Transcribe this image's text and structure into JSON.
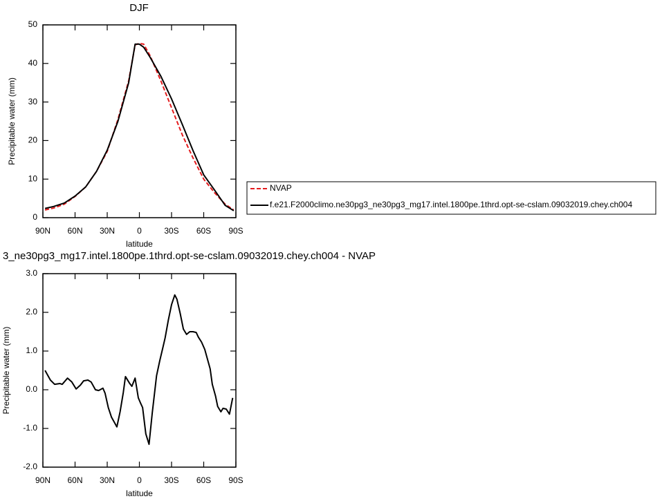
{
  "chart_data": [
    {
      "type": "line",
      "title": "DJF",
      "ylabel": "Precipitable water (mm)",
      "xlabel": "latitude",
      "x": [
        88,
        80,
        70,
        60,
        50,
        40,
        30,
        20,
        10,
        4,
        0,
        -4,
        -10,
        -20,
        -30,
        -40,
        -50,
        -60,
        -70,
        -80,
        -88
      ],
      "series": [
        {
          "name": "NVAP",
          "color": "#e41a1c",
          "dash": true,
          "values": [
            2.0,
            2.5,
            3.5,
            5.5,
            8.0,
            12.0,
            17.2,
            25.5,
            35.5,
            44.8,
            45.2,
            45.0,
            42.0,
            35.5,
            28.5,
            21.5,
            15.5,
            10.0,
            6.5,
            3.5,
            2.0
          ]
        },
        {
          "name": "f.e21.F2000climo.ne30pg3_ne30pg3_mg17.intel.1800pe.1thrd.opt-se-cslam.09032019.chey.ch004",
          "color": "#000000",
          "dash": false,
          "values": [
            2.4,
            2.9,
            3.8,
            5.6,
            8.0,
            12.0,
            17.5,
            25.0,
            35.0,
            45.0,
            45.0,
            44.2,
            41.6,
            36.7,
            30.8,
            24.2,
            17.4,
            11.1,
            7.2,
            3.2,
            1.8
          ]
        }
      ],
      "xlim": [
        90,
        -90
      ],
      "xticks": [
        {
          "value": 90,
          "label": "90N"
        },
        {
          "value": 60,
          "label": "60N"
        },
        {
          "value": 30,
          "label": "30N"
        },
        0,
        {
          "value": -30,
          "label": "30S"
        },
        {
          "value": -60,
          "label": "60S"
        },
        {
          "value": -90,
          "label": "90S"
        }
      ],
      "ylim": [
        0,
        50
      ],
      "yticks": [
        0,
        10,
        20,
        30,
        40,
        50
      ]
    },
    {
      "type": "line",
      "title": "3_ne30pg3_mg17.intel.1800pe.1thrd.opt-se-cslam.09032019.chey.ch004 - NVAP",
      "ylabel": "Precipitable water (mm)",
      "xlabel": "latitude",
      "x": [
        88,
        83,
        79,
        74,
        72,
        67,
        63,
        59,
        55,
        52,
        48,
        45,
        41,
        38,
        34,
        32,
        29,
        26,
        23,
        21,
        18,
        15,
        13,
        9,
        7,
        4,
        1,
        -1,
        -3,
        -6,
        -9,
        -12,
        -16,
        -19,
        -22,
        -24,
        -27,
        -30,
        -33,
        -35,
        -38,
        -41,
        -44,
        -47,
        -50,
        -53,
        -55,
        -58,
        -61,
        -63,
        -66,
        -68,
        -71,
        -73,
        -76,
        -78,
        -81,
        -84,
        -87
      ],
      "color": "#000000",
      "values": [
        0.5,
        0.25,
        0.14,
        0.16,
        0.14,
        0.3,
        0.2,
        0.02,
        0.12,
        0.23,
        0.25,
        0.2,
        0.0,
        -0.02,
        0.04,
        -0.09,
        -0.46,
        -0.71,
        -0.86,
        -0.96,
        -0.57,
        -0.07,
        0.34,
        0.16,
        0.09,
        0.3,
        -0.21,
        -0.34,
        -0.46,
        -1.14,
        -1.41,
        -0.6,
        0.36,
        0.75,
        1.1,
        1.34,
        1.8,
        2.2,
        2.45,
        2.34,
        1.98,
        1.57,
        1.43,
        1.5,
        1.5,
        1.48,
        1.36,
        1.23,
        1.04,
        0.84,
        0.54,
        0.14,
        -0.16,
        -0.43,
        -0.57,
        -0.48,
        -0.5,
        -0.63,
        -0.21
      ],
      "xlim": [
        90,
        -90
      ],
      "xticks": [
        {
          "value": 90,
          "label": "90N"
        },
        {
          "value": 60,
          "label": "60N"
        },
        {
          "value": 30,
          "label": "30N"
        },
        0,
        {
          "value": -30,
          "label": "30S"
        },
        {
          "value": -60,
          "label": "60S"
        },
        {
          "value": -90,
          "label": "90S"
        }
      ],
      "ylim": [
        -2,
        3
      ],
      "yticks": [
        {
          "value": -2,
          "label": "-2.0"
        },
        {
          "value": -1,
          "label": "-1.0"
        },
        {
          "value": 0,
          "label": "0.0"
        },
        {
          "value": 1,
          "label": "1.0"
        },
        {
          "value": 2,
          "label": "2.0"
        },
        {
          "value": 3,
          "label": "3.0"
        }
      ]
    }
  ]
}
